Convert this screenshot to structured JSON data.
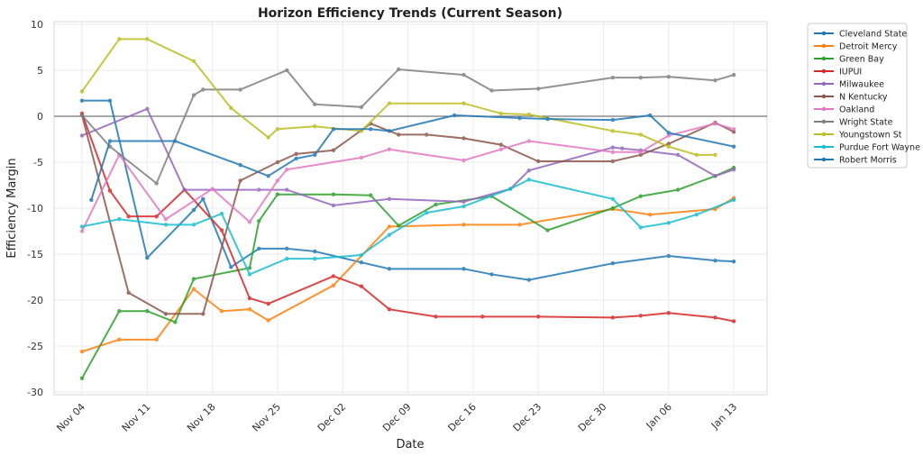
{
  "chart_data": {
    "type": "line",
    "title": "Horizon Efficiency Trends (Current Season)",
    "xlabel": "Date",
    "ylabel": "Efficiency Margin",
    "ylim": [
      -30,
      10
    ],
    "yticks": [
      10,
      5,
      0,
      -5,
      -10,
      -15,
      -20,
      -25,
      -30
    ],
    "xticks": [
      {
        "date": "11-04",
        "label": "Nov 04"
      },
      {
        "date": "11-11",
        "label": "Nov 11"
      },
      {
        "date": "11-18",
        "label": "Nov 18"
      },
      {
        "date": "11-25",
        "label": "Nov 25"
      },
      {
        "date": "12-02",
        "label": "Dec 02"
      },
      {
        "date": "12-09",
        "label": "Dec 09"
      },
      {
        "date": "12-16",
        "label": "Dec 16"
      },
      {
        "date": "12-23",
        "label": "Dec 23"
      },
      {
        "date": "12-30",
        "label": "Dec 30"
      },
      {
        "date": "01-06",
        "label": "Jan 06"
      },
      {
        "date": "01-13",
        "label": "Jan 13"
      }
    ],
    "grid": true,
    "reference_line": 0,
    "legend_placement": "outside-top-right",
    "series": [
      {
        "name": "Cleveland State",
        "color": "#1f77b4",
        "points": [
          [
            "11-04",
            1.7
          ],
          [
            "11-07",
            1.7
          ],
          [
            "11-11",
            -15.4
          ],
          [
            "11-16",
            -10.2
          ],
          [
            "11-17",
            -9.0
          ],
          [
            "11-20",
            -16.4
          ],
          [
            "11-23",
            -14.4
          ],
          [
            "11-26",
            -14.4
          ],
          [
            "11-29",
            -14.7
          ],
          [
            "12-04",
            -15.9
          ],
          [
            "12-07",
            -16.6
          ],
          [
            "12-15",
            -16.6
          ],
          [
            "12-18",
            -17.2
          ],
          [
            "12-22",
            -17.8
          ],
          [
            "12-31",
            -16.0
          ],
          [
            "01-06",
            -15.2
          ],
          [
            "01-11",
            -15.7
          ],
          [
            "01-13",
            -15.8
          ]
        ]
      },
      {
        "name": "Detroit Mercy",
        "color": "#ff7f0e",
        "points": [
          [
            "11-04",
            -25.6
          ],
          [
            "11-08",
            -24.3
          ],
          [
            "11-12",
            -24.3
          ],
          [
            "11-16",
            -18.8
          ],
          [
            "11-19",
            -21.2
          ],
          [
            "11-22",
            -21.0
          ],
          [
            "11-24",
            -22.2
          ],
          [
            "12-01",
            -18.4
          ],
          [
            "12-07",
            -12.0
          ],
          [
            "12-15",
            -11.8
          ],
          [
            "12-21",
            -11.8
          ],
          [
            "12-31",
            -10.1
          ],
          [
            "01-04",
            -10.7
          ],
          [
            "01-11",
            -10.1
          ],
          [
            "01-13",
            -8.9
          ]
        ]
      },
      {
        "name": "Green Bay",
        "color": "#2ca02c",
        "points": [
          [
            "11-04",
            -28.5
          ],
          [
            "11-08",
            -21.2
          ],
          [
            "11-11",
            -21.2
          ],
          [
            "11-14",
            -22.4
          ],
          [
            "11-16",
            -17.7
          ],
          [
            "11-22",
            -16.5
          ],
          [
            "11-23",
            -11.4
          ],
          [
            "11-25",
            -8.5
          ],
          [
            "12-01",
            -8.5
          ],
          [
            "12-05",
            -8.6
          ],
          [
            "12-08",
            -11.9
          ],
          [
            "12-12",
            -9.6
          ],
          [
            "12-18",
            -8.7
          ],
          [
            "12-24",
            -12.4
          ],
          [
            "12-31",
            -10.0
          ],
          [
            "01-03",
            -8.7
          ],
          [
            "01-07",
            -8.0
          ],
          [
            "01-11",
            -6.5
          ],
          [
            "01-13",
            -5.6
          ]
        ]
      },
      {
        "name": "IUPUI",
        "color": "#d62728",
        "points": [
          [
            "11-04",
            0.3
          ],
          [
            "11-07",
            -8.1
          ],
          [
            "11-09",
            -10.9
          ],
          [
            "11-12",
            -10.9
          ],
          [
            "11-15",
            -8.0
          ],
          [
            "11-19",
            -12.4
          ],
          [
            "11-22",
            -19.8
          ],
          [
            "11-24",
            -20.4
          ],
          [
            "12-01",
            -17.4
          ],
          [
            "12-04",
            -18.5
          ],
          [
            "12-07",
            -21.0
          ],
          [
            "12-12",
            -21.8
          ],
          [
            "12-17",
            -21.8
          ],
          [
            "12-23",
            -21.8
          ],
          [
            "12-31",
            -21.9
          ],
          [
            "01-03",
            -21.7
          ],
          [
            "01-06",
            -21.4
          ],
          [
            "01-11",
            -21.9
          ],
          [
            "01-13",
            -22.3
          ]
        ]
      },
      {
        "name": "Milwaukee",
        "color": "#9467bd",
        "points": [
          [
            "11-04",
            -2.1
          ],
          [
            "11-11",
            0.8
          ],
          [
            "11-15",
            -8.0
          ],
          [
            "11-23",
            -8.0
          ],
          [
            "11-26",
            -8.0
          ],
          [
            "12-01",
            -9.7
          ],
          [
            "12-07",
            -9.0
          ],
          [
            "12-15",
            -9.3
          ],
          [
            "12-20",
            -7.9
          ],
          [
            "12-22",
            -5.9
          ],
          [
            "12-31",
            -3.4
          ],
          [
            "01-01",
            -3.5
          ],
          [
            "01-03",
            -3.7
          ],
          [
            "01-07",
            -4.2
          ],
          [
            "01-11",
            -6.5
          ],
          [
            "01-13",
            -5.8
          ]
        ]
      },
      {
        "name": "N Kentucky",
        "color": "#8c564b",
        "points": [
          [
            "11-04",
            0.1
          ],
          [
            "11-09",
            -19.2
          ],
          [
            "11-13",
            -21.5
          ],
          [
            "11-17",
            -21.5
          ],
          [
            "11-21",
            -7.0
          ],
          [
            "11-25",
            -5.0
          ],
          [
            "11-27",
            -4.1
          ],
          [
            "12-01",
            -3.7
          ],
          [
            "12-05",
            -0.8
          ],
          [
            "12-08",
            -2.0
          ],
          [
            "12-11",
            -2.0
          ],
          [
            "12-15",
            -2.4
          ],
          [
            "12-19",
            -3.1
          ],
          [
            "12-23",
            -4.9
          ],
          [
            "12-31",
            -4.9
          ],
          [
            "01-03",
            -4.2
          ],
          [
            "01-06",
            -3.0
          ],
          [
            "01-11",
            -0.7
          ],
          [
            "01-13",
            -1.7
          ]
        ]
      },
      {
        "name": "Oakland",
        "color": "#e377c2",
        "points": [
          [
            "11-04",
            -12.5
          ],
          [
            "11-08",
            -4.2
          ],
          [
            "11-13",
            -11.2
          ],
          [
            "11-18",
            -7.9
          ],
          [
            "11-22",
            -11.5
          ],
          [
            "11-25",
            -7.0
          ],
          [
            "11-26",
            -5.8
          ],
          [
            "12-04",
            -4.5
          ],
          [
            "12-07",
            -3.6
          ],
          [
            "12-15",
            -4.8
          ],
          [
            "12-19",
            -3.6
          ],
          [
            "12-22",
            -2.7
          ],
          [
            "12-31",
            -3.9
          ],
          [
            "01-03",
            -3.9
          ],
          [
            "01-06",
            -2.1
          ],
          [
            "01-11",
            -0.8
          ],
          [
            "01-13",
            -1.4
          ]
        ]
      },
      {
        "name": "Wright State",
        "color": "#7f7f7f",
        "points": [
          [
            "11-04",
            0.1
          ],
          [
            "11-07",
            -3.3
          ],
          [
            "11-12",
            -7.3
          ],
          [
            "11-16",
            2.3
          ],
          [
            "11-17",
            2.9
          ],
          [
            "11-21",
            2.9
          ],
          [
            "11-26",
            5.0
          ],
          [
            "11-29",
            1.3
          ],
          [
            "12-04",
            1.0
          ],
          [
            "12-08",
            5.1
          ],
          [
            "12-15",
            4.5
          ],
          [
            "12-18",
            2.8
          ],
          [
            "12-23",
            3.0
          ],
          [
            "12-31",
            4.2
          ],
          [
            "01-03",
            4.2
          ],
          [
            "01-06",
            4.3
          ],
          [
            "01-11",
            3.9
          ],
          [
            "01-13",
            4.5
          ]
        ]
      },
      {
        "name": "Youngstown St",
        "color": "#bcbd22",
        "points": [
          [
            "11-04",
            2.7
          ],
          [
            "11-08",
            8.4
          ],
          [
            "11-11",
            8.4
          ],
          [
            "11-16",
            6.0
          ],
          [
            "11-20",
            0.9
          ],
          [
            "11-24",
            -2.3
          ],
          [
            "11-25",
            -1.4
          ],
          [
            "11-29",
            -1.1
          ],
          [
            "12-04",
            -1.6
          ],
          [
            "12-07",
            1.4
          ],
          [
            "12-15",
            1.4
          ],
          [
            "12-19",
            0.3
          ],
          [
            "12-22",
            0.2
          ],
          [
            "12-31",
            -1.6
          ],
          [
            "01-03",
            -2.0
          ],
          [
            "01-06",
            -3.3
          ],
          [
            "01-09",
            -4.2
          ],
          [
            "01-11",
            -4.2
          ]
        ]
      },
      {
        "name": "Purdue Fort Wayne",
        "color": "#17becf",
        "points": [
          [
            "11-04",
            -12.0
          ],
          [
            "11-08",
            -11.2
          ],
          [
            "11-13",
            -11.8
          ],
          [
            "11-16",
            -11.8
          ],
          [
            "11-19",
            -10.6
          ],
          [
            "11-22",
            -17.2
          ],
          [
            "11-26",
            -15.5
          ],
          [
            "11-29",
            -15.5
          ],
          [
            "12-04",
            -15.1
          ],
          [
            "12-07",
            -12.9
          ],
          [
            "12-11",
            -10.5
          ],
          [
            "12-15",
            -9.8
          ],
          [
            "12-20",
            -7.9
          ],
          [
            "12-22",
            -6.9
          ],
          [
            "12-31",
            -9.0
          ],
          [
            "01-03",
            -12.1
          ],
          [
            "01-06",
            -11.6
          ],
          [
            "01-09",
            -10.7
          ],
          [
            "01-13",
            -9.1
          ]
        ]
      },
      {
        "name": "Robert Morris",
        "color": "#1f77b4",
        "points": [
          [
            "11-05",
            -9.1
          ],
          [
            "11-07",
            -2.7
          ],
          [
            "11-14",
            -2.7
          ],
          [
            "11-21",
            -5.3
          ],
          [
            "11-24",
            -6.5
          ],
          [
            "11-27",
            -4.6
          ],
          [
            "11-29",
            -4.2
          ],
          [
            "12-01",
            -1.4
          ],
          [
            "12-05",
            -1.4
          ],
          [
            "12-07",
            -1.6
          ],
          [
            "12-14",
            0.1
          ],
          [
            "12-21",
            -0.2
          ],
          [
            "12-24",
            -0.3
          ],
          [
            "12-31",
            -0.4
          ],
          [
            "01-04",
            0.1
          ],
          [
            "01-06",
            -1.8
          ],
          [
            "01-13",
            -3.3
          ]
        ]
      }
    ]
  }
}
